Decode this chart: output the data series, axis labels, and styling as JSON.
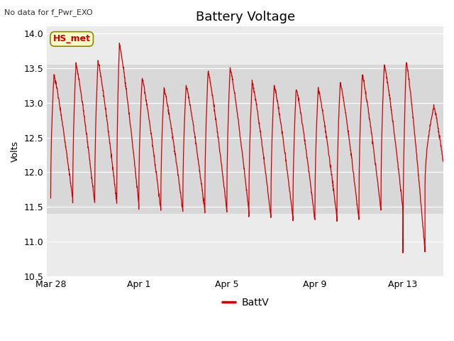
{
  "title": "Battery Voltage",
  "no_data_text": "No data for f_Pwr_EXO",
  "ylabel": "Volts",
  "legend_label": "BattV",
  "line_color": "#cc0000",
  "background_color": "#ffffff",
  "plot_bg_color": "#ebebeb",
  "band_light_color": "#d8d8d8",
  "ylim": [
    10.5,
    14.1
  ],
  "yticks": [
    10.5,
    11.0,
    11.5,
    12.0,
    12.5,
    13.0,
    13.5,
    14.0
  ],
  "hs_met_label": "HS_met",
  "hs_met_bg": "#ffffcc",
  "hs_met_border": "#888800",
  "hs_met_text_color": "#cc0000",
  "xticklabels": [
    "Mar 28",
    "Apr 1",
    "Apr 5",
    "Apr 9",
    "Apr 13"
  ],
  "title_fontsize": 13,
  "axis_fontsize": 9,
  "tick_fontsize": 9,
  "figwidth": 6.4,
  "figheight": 4.8,
  "dpi": 100
}
